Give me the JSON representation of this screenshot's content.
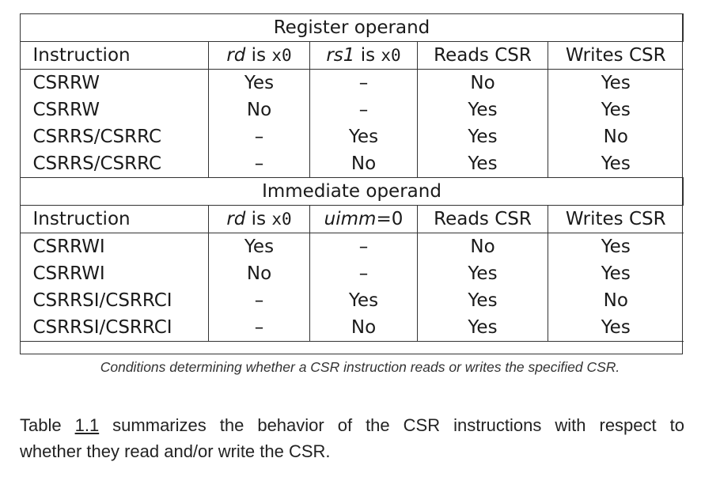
{
  "table": {
    "register_section": {
      "title": "Register operand",
      "headers": {
        "instruction": "Instruction",
        "rd_italic": "rd",
        "rd_is": " is ",
        "rd_reg": "x0",
        "rs1_italic": "rs1",
        "rs1_is": " is ",
        "rs1_reg": "x0",
        "reads": "Reads CSR",
        "writes": "Writes CSR"
      },
      "rows": [
        {
          "instruction": "CSRRW",
          "rd": "Yes",
          "src": "–",
          "reads": "No",
          "writes": "Yes"
        },
        {
          "instruction": "CSRRW",
          "rd": "No",
          "src": "–",
          "reads": "Yes",
          "writes": "Yes"
        },
        {
          "instruction": "CSRRS/CSRRC",
          "rd": "–",
          "src": "Yes",
          "reads": "Yes",
          "writes": "No"
        },
        {
          "instruction": "CSRRS/CSRRC",
          "rd": "–",
          "src": "No",
          "reads": "Yes",
          "writes": "Yes"
        }
      ]
    },
    "immediate_section": {
      "title": "Immediate operand",
      "headers": {
        "instruction": "Instruction",
        "rd_italic": "rd",
        "rd_is": " is ",
        "rd_reg": "x0",
        "uimm_italic": "uimm",
        "uimm_eq": "=0",
        "reads": "Reads CSR",
        "writes": "Writes CSR"
      },
      "rows": [
        {
          "instruction": "CSRRWI",
          "rd": "Yes",
          "src": "–",
          "reads": "No",
          "writes": "Yes"
        },
        {
          "instruction": "CSRRWI",
          "rd": "No",
          "src": "–",
          "reads": "Yes",
          "writes": "Yes"
        },
        {
          "instruction": "CSRRSI/CSRRCI",
          "rd": "–",
          "src": "Yes",
          "reads": "Yes",
          "writes": "No"
        },
        {
          "instruction": "CSRRSI/CSRRCI",
          "rd": "–",
          "src": "No",
          "reads": "Yes",
          "writes": "Yes"
        }
      ]
    }
  },
  "caption": "Conditions determining whether a CSR instruction reads or writes the specified CSR.",
  "paragraph": {
    "before": "Table ",
    "link": "1.1",
    "after_line1": " summarizes the behavior of the CSR instructions with respect to",
    "line2": "whether they read and/or write the CSR."
  }
}
